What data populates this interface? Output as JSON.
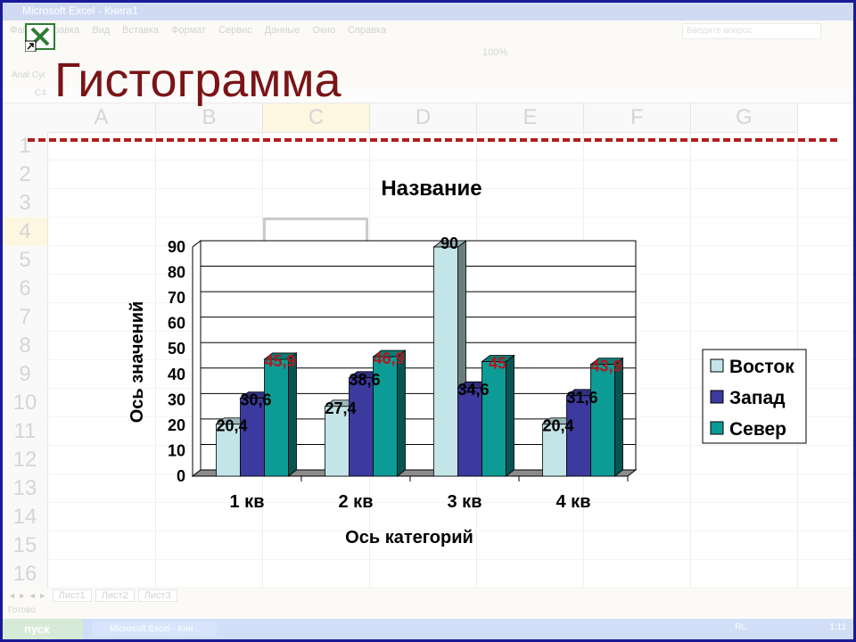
{
  "window": {
    "title": "Microsoft Excel - Книга1",
    "menu": [
      "Файл",
      "Правка",
      "Вид",
      "Вставка",
      "Формат",
      "Сервис",
      "Данные",
      "Окно",
      "Справка"
    ],
    "help_placeholder": "Введите вопрос",
    "zoom": "100%",
    "font_name": "Arial Cyr",
    "cell_ref": "C4",
    "columns": [
      "A",
      "B",
      "C",
      "D",
      "E",
      "F",
      "G"
    ],
    "selected_column": "C",
    "rows": [
      "1",
      "2",
      "3",
      "4",
      "5",
      "6",
      "7",
      "8",
      "9",
      "10",
      "11",
      "12",
      "13",
      "14",
      "15",
      "16"
    ],
    "selected_row": "4",
    "sheet_tabs": [
      "Лист1",
      "Лист2",
      "Лист3"
    ],
    "status": "Готово",
    "taskbar": {
      "start": "пуск",
      "task": "Microsoft Excel - Кни...",
      "lang": "RL",
      "clock": "1:11"
    }
  },
  "slide": {
    "title": "Гистограмма"
  },
  "colors": {
    "title": "#7a1417",
    "dash_rule": "#b01e1e",
    "label_highlight": "#b0191e",
    "series_vostok": "#c3e5e7",
    "series_zapad": "#3c3a9e",
    "series_sever": "#0d9b95"
  },
  "chart_data": {
    "type": "bar",
    "title": "Название",
    "xlabel": "Ось категорий",
    "ylabel": "Ось значений",
    "categories": [
      "1 кв",
      "2 кв",
      "3 кв",
      "4 кв"
    ],
    "ylim": [
      0,
      90
    ],
    "yticks": [
      0,
      10,
      20,
      30,
      40,
      50,
      60,
      70,
      80,
      90
    ],
    "grid": true,
    "legend_position": "right",
    "series": [
      {
        "name": "Восток",
        "values": [
          20.4,
          27.4,
          90,
          20.4
        ],
        "labels": [
          "20,4",
          "27,4",
          "90",
          "20,4"
        ],
        "color": "#c3e5e7"
      },
      {
        "name": "Запад",
        "values": [
          30.6,
          38.6,
          34.6,
          31.6
        ],
        "labels": [
          "30,6",
          "38,6",
          "34,6",
          "31,6"
        ],
        "color": "#3c3a9e"
      },
      {
        "name": "Север",
        "values": [
          45.9,
          46.9,
          45,
          43.9
        ],
        "labels": [
          "45,9",
          "46,9",
          "45",
          "43,9"
        ],
        "color": "#0d9b95"
      }
    ]
  }
}
